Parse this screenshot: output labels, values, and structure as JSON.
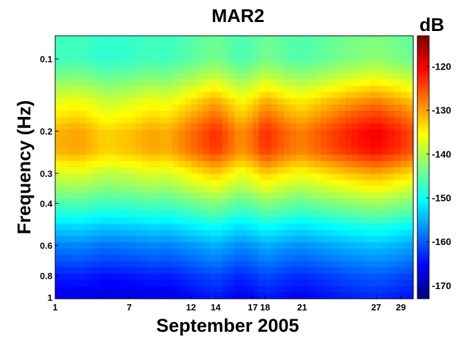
{
  "chart_data": {
    "type": "heatmap",
    "title": "MAR2",
    "xlabel": "September 2005",
    "ylabel": "Frequency (Hz)",
    "x": {
      "range": [
        1,
        30
      ],
      "ticks": [
        1,
        7,
        12,
        14,
        17,
        18,
        21,
        27,
        29
      ],
      "tick_labels": [
        "1",
        "7",
        "12",
        "14",
        "17",
        "18",
        "21",
        "27",
        "29"
      ]
    },
    "y": {
      "scale": "log",
      "direction": "increasing-downward",
      "range": [
        0.08,
        1
      ],
      "ticks": [
        0.1,
        0.2,
        0.3,
        0.4,
        0.6,
        0.8,
        1
      ],
      "tick_labels": [
        "0.1",
        "0.2",
        "0.3",
        "0.4",
        "0.6",
        "0.8",
        "1"
      ]
    },
    "colorbar": {
      "label": "dB",
      "range": [
        -173,
        -113
      ],
      "ticks": [
        -120,
        -130,
        -140,
        -150,
        -160,
        -170
      ],
      "tick_labels": [
        "-120",
        "-130",
        "-140",
        "-150",
        "-160",
        "-170"
      ],
      "colormap": "jet",
      "colors": [
        "#00007f",
        "#0000ff",
        "#007fff",
        "#00ffff",
        "#7fff7f",
        "#ffff00",
        "#ff7f00",
        "#ff0000",
        "#7f0000"
      ]
    },
    "approx_level_profile": [
      {
        "frequency_hz": 0.1,
        "db": -147
      },
      {
        "frequency_hz": 0.15,
        "db": -137
      },
      {
        "frequency_hz": 0.2,
        "db": -131
      },
      {
        "frequency_hz": 0.24,
        "db": -131
      },
      {
        "frequency_hz": 0.3,
        "db": -138
      },
      {
        "frequency_hz": 0.4,
        "db": -146
      },
      {
        "frequency_hz": 0.5,
        "db": -153
      },
      {
        "frequency_hz": 0.6,
        "db": -158
      },
      {
        "frequency_hz": 0.8,
        "db": -164
      },
      {
        "frequency_hz": 1.0,
        "db": -167
      }
    ],
    "approx_day_offset_db": [
      {
        "day": 1,
        "offset": 0
      },
      {
        "day": 3,
        "offset": 1
      },
      {
        "day": 5,
        "offset": -2
      },
      {
        "day": 7,
        "offset": -1
      },
      {
        "day": 9,
        "offset": 1
      },
      {
        "day": 10,
        "offset": 0
      },
      {
        "day": 12,
        "offset": 4
      },
      {
        "day": 14,
        "offset": 8
      },
      {
        "day": 16,
        "offset": 2
      },
      {
        "day": 17,
        "offset": 4
      },
      {
        "day": 18,
        "offset": 8
      },
      {
        "day": 20,
        "offset": 4
      },
      {
        "day": 21,
        "offset": 3
      },
      {
        "day": 23,
        "offset": 6
      },
      {
        "day": 25,
        "offset": 9
      },
      {
        "day": 27,
        "offset": 11
      },
      {
        "day": 29,
        "offset": 8
      },
      {
        "day": 30,
        "offset": 6
      }
    ]
  }
}
